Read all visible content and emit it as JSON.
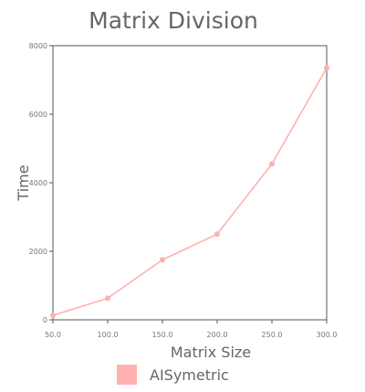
{
  "chart_data": {
    "type": "line",
    "title": "Matrix Division",
    "xlabel": "Matrix Size",
    "ylabel": "Time",
    "x": [
      50.0,
      100.0,
      150.0,
      200.0,
      250.0,
      300.0
    ],
    "x_tick_labels": [
      "50.0",
      "100.0",
      "150.0",
      "200.0",
      "250.0",
      "300.0"
    ],
    "xlim": [
      50,
      300
    ],
    "ylim": [
      0,
      8000
    ],
    "y_ticks": [
      0,
      2000,
      4000,
      6000,
      8000
    ],
    "y_tick_labels": [
      "0",
      "2000",
      "4000",
      "6000",
      "8000"
    ],
    "grid": false,
    "legend_position": "bottom-center",
    "series": [
      {
        "name": "AISymetric",
        "color": "#ffb0b0",
        "values": [
          130,
          630,
          1750,
          2500,
          4550,
          7350
        ]
      }
    ]
  }
}
